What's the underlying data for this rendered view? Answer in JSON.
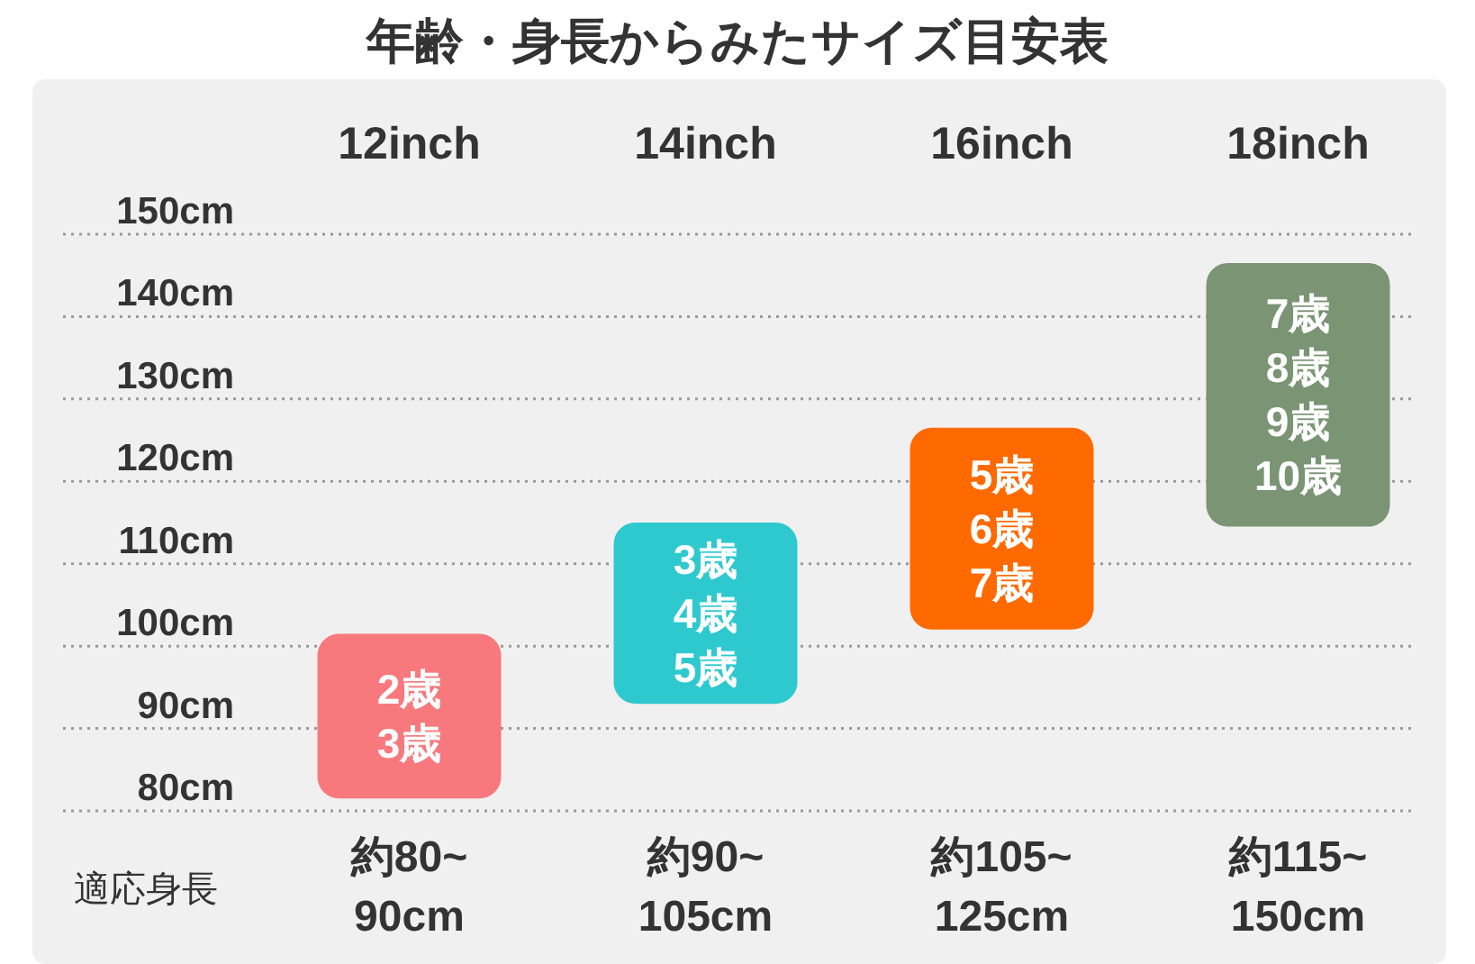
{
  "chart_data": {
    "type": "bar",
    "title": "年齢・身長からみたサイズ目安表",
    "categories": [
      "12inch",
      "14inch",
      "16inch",
      "18inch"
    ],
    "base": [
      81.5,
      93,
      102,
      114.5
    ],
    "values": [
      20,
      22,
      24.5,
      32
    ],
    "colors": [
      "#f7797d",
      "#2ec9cf",
      "#ff6a00",
      "#7a9474"
    ],
    "ylim": [
      80,
      150
    ],
    "yticks": [
      {
        "value": 80,
        "label": "80cm"
      },
      {
        "value": 90,
        "label": "90cm"
      },
      {
        "value": 100,
        "label": "100cm"
      },
      {
        "value": 110,
        "label": "110cm"
      },
      {
        "value": 120,
        "label": "120cm"
      },
      {
        "value": 130,
        "label": "130cm"
      },
      {
        "value": 140,
        "label": "140cm"
      },
      {
        "value": 150,
        "label": "150cm"
      }
    ],
    "grid": "y",
    "annotations": [
      "2歳\n3歳",
      "3歳\n4歳\n5歳",
      "5歳\n6歳\n7歳",
      "7歳\n8歳\n9歳\n10歳",
      "適応身長",
      "約80~\n90cm",
      "約90~\n105cm",
      "約105~\n125cm",
      "約115~\n150cm"
    ]
  }
}
